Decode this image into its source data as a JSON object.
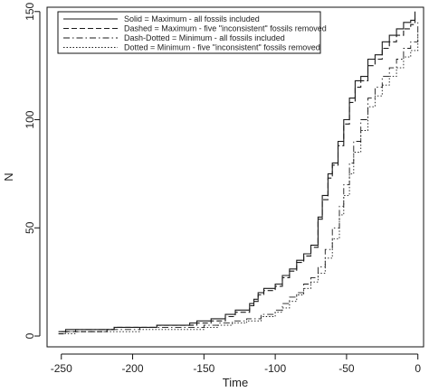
{
  "chart_data": {
    "type": "line",
    "xlabel": "Time",
    "ylabel": "N",
    "xlim": [
      -260,
      4
    ],
    "ylim": [
      -5,
      152
    ],
    "x_ticks": [
      "-250",
      "-200",
      "-150",
      "-100",
      "-50",
      "0"
    ],
    "x_tick_values": [
      -250,
      -200,
      -150,
      -100,
      -50,
      0
    ],
    "y_ticks": [
      "0",
      "50",
      "100",
      "150"
    ],
    "y_tick_values": [
      0,
      50,
      100,
      150
    ],
    "grid": false,
    "legend_position": "top-left",
    "series": [
      {
        "name": "Solid = Maximum - all fossils included",
        "dash": "solid",
        "points": [
          [
            -252,
            2
          ],
          [
            -247,
            3
          ],
          [
            -218,
            3
          ],
          [
            -213,
            4
          ],
          [
            -188,
            4
          ],
          [
            -183,
            5
          ],
          [
            -160,
            6
          ],
          [
            -155,
            7
          ],
          [
            -145,
            8
          ],
          [
            -135,
            10
          ],
          [
            -128,
            12
          ],
          [
            -118,
            15
          ],
          [
            -115,
            17
          ],
          [
            -112,
            20
          ],
          [
            -108,
            22
          ],
          [
            -100,
            24
          ],
          [
            -95,
            28
          ],
          [
            -90,
            31
          ],
          [
            -85,
            35
          ],
          [
            -80,
            38
          ],
          [
            -75,
            42
          ],
          [
            -70,
            55
          ],
          [
            -67,
            65
          ],
          [
            -63,
            75
          ],
          [
            -60,
            80
          ],
          [
            -56,
            90
          ],
          [
            -52,
            100
          ],
          [
            -48,
            110
          ],
          [
            -44,
            118
          ],
          [
            -40,
            120
          ],
          [
            -35,
            128
          ],
          [
            -30,
            130
          ],
          [
            -25,
            136
          ],
          [
            -20,
            139
          ],
          [
            -15,
            142
          ],
          [
            -10,
            145
          ],
          [
            -5,
            146
          ],
          [
            -2,
            150
          ]
        ]
      },
      {
        "name": "Dashed = Maximum - five \"inconsistent\" fossils removed",
        "dash": "dashed",
        "points": [
          [
            -252,
            1
          ],
          [
            -247,
            2
          ],
          [
            -218,
            3
          ],
          [
            -213,
            4
          ],
          [
            -188,
            4
          ],
          [
            -183,
            5
          ],
          [
            -160,
            5
          ],
          [
            -155,
            6
          ],
          [
            -145,
            7
          ],
          [
            -135,
            9
          ],
          [
            -128,
            11
          ],
          [
            -118,
            14
          ],
          [
            -115,
            16
          ],
          [
            -112,
            19
          ],
          [
            -108,
            21
          ],
          [
            -100,
            23
          ],
          [
            -95,
            27
          ],
          [
            -90,
            30
          ],
          [
            -85,
            34
          ],
          [
            -80,
            37
          ],
          [
            -75,
            41
          ],
          [
            -70,
            54
          ],
          [
            -67,
            63
          ],
          [
            -63,
            73
          ],
          [
            -60,
            79
          ],
          [
            -56,
            88
          ],
          [
            -52,
            98
          ],
          [
            -48,
            108
          ],
          [
            -44,
            115
          ],
          [
            -40,
            118
          ],
          [
            -35,
            125
          ],
          [
            -30,
            128
          ],
          [
            -25,
            133
          ],
          [
            -20,
            136
          ],
          [
            -15,
            139
          ],
          [
            -10,
            142
          ],
          [
            -5,
            144
          ],
          [
            -2,
            147
          ]
        ]
      },
      {
        "name": "Dash-Dotted = Minimum - all fossils included",
        "dash": "dashdot",
        "points": [
          [
            -250,
            2
          ],
          [
            -240,
            3
          ],
          [
            -200,
            3
          ],
          [
            -195,
            4
          ],
          [
            -160,
            4
          ],
          [
            -150,
            5
          ],
          [
            -140,
            6
          ],
          [
            -130,
            7
          ],
          [
            -120,
            8
          ],
          [
            -110,
            10
          ],
          [
            -100,
            12
          ],
          [
            -95,
            15
          ],
          [
            -90,
            18
          ],
          [
            -85,
            20
          ],
          [
            -80,
            24
          ],
          [
            -75,
            27
          ],
          [
            -70,
            32
          ],
          [
            -65,
            40
          ],
          [
            -60,
            50
          ],
          [
            -55,
            60
          ],
          [
            -52,
            70
          ],
          [
            -48,
            80
          ],
          [
            -45,
            90
          ],
          [
            -40,
            100
          ],
          [
            -35,
            110
          ],
          [
            -30,
            115
          ],
          [
            -25,
            120
          ],
          [
            -20,
            124
          ],
          [
            -15,
            128
          ],
          [
            -10,
            133
          ],
          [
            -5,
            136
          ],
          [
            0,
            145
          ]
        ]
      },
      {
        "name": "Dotted = Minimum - five \"inconsistent\" fossils removed",
        "dash": "dotted",
        "points": [
          [
            -250,
            1
          ],
          [
            -240,
            2
          ],
          [
            -200,
            2
          ],
          [
            -195,
            3
          ],
          [
            -160,
            3
          ],
          [
            -150,
            4
          ],
          [
            -140,
            5
          ],
          [
            -130,
            6
          ],
          [
            -120,
            7
          ],
          [
            -110,
            9
          ],
          [
            -100,
            11
          ],
          [
            -95,
            13
          ],
          [
            -90,
            16
          ],
          [
            -85,
            19
          ],
          [
            -80,
            22
          ],
          [
            -75,
            25
          ],
          [
            -70,
            29
          ],
          [
            -65,
            36
          ],
          [
            -60,
            45
          ],
          [
            -55,
            56
          ],
          [
            -52,
            65
          ],
          [
            -48,
            75
          ],
          [
            -45,
            85
          ],
          [
            -40,
            95
          ],
          [
            -35,
            106
          ],
          [
            -30,
            111
          ],
          [
            -25,
            116
          ],
          [
            -20,
            120
          ],
          [
            -15,
            124
          ],
          [
            -10,
            129
          ],
          [
            -5,
            132
          ],
          [
            0,
            140
          ]
        ]
      }
    ]
  }
}
